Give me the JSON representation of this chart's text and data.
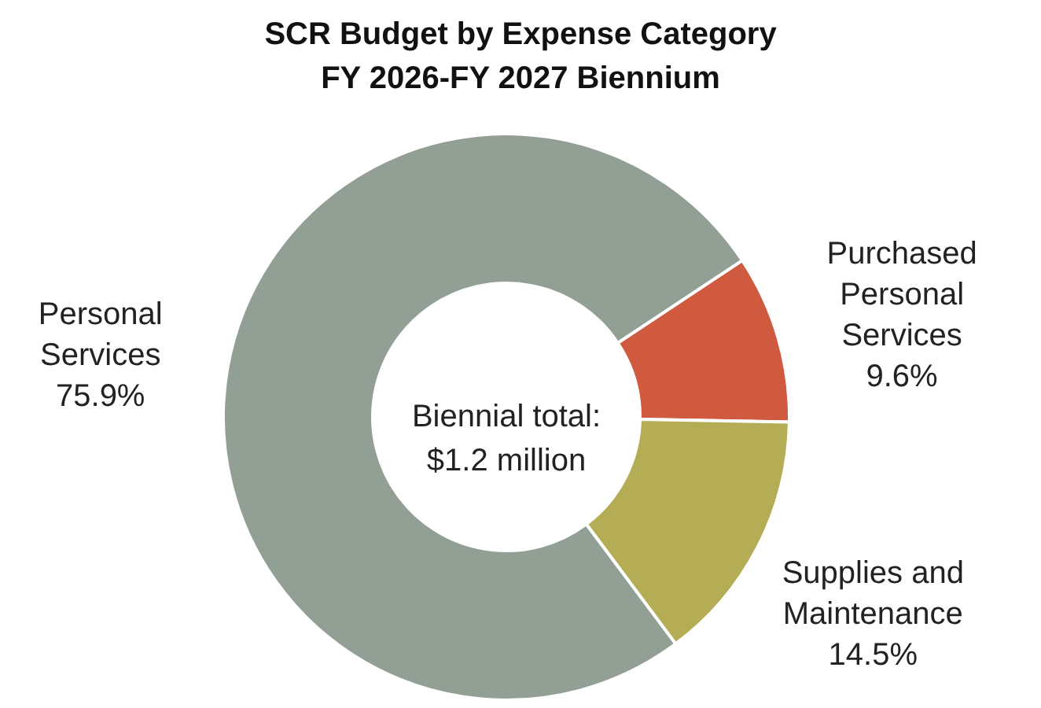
{
  "chart_data": {
    "type": "donut",
    "title": "SCR Budget by Expense Category\nFY 2026-FY 2027 Biennium",
    "categories": [
      "Personal Services",
      "Purchased Personal Services",
      "Supplies and Maintenance"
    ],
    "values": [
      75.9,
      9.6,
      14.5
    ],
    "colors": [
      "#929f94",
      "#cf5a40",
      "#b5ad55"
    ],
    "value_labels": [
      "75.9%",
      "9.6%",
      "14.5%"
    ],
    "annotations": [
      "Biennial total:\n$1.2 million"
    ]
  }
}
